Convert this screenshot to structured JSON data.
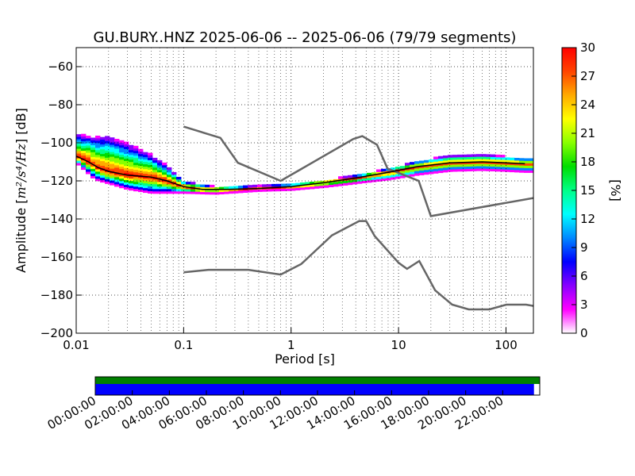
{
  "chart_data": {
    "type": "heatmap",
    "title": "GU.BURY..HNZ   2025-06-06 -- 2025-06-06  (79/79 segments)",
    "xlabel": "Period [s]",
    "ylabel_text": "Amplitude [",
    "ylabel_math": "m²/s⁴/Hz",
    "ylabel_suffix": "] [dB]",
    "x_scale": "log",
    "xlim": [
      0.01,
      180
    ],
    "ylim": [
      -200,
      -50
    ],
    "x_ticks": [
      {
        "value": 0.01,
        "label": "0.01"
      },
      {
        "value": 0.1,
        "label": "0.1"
      },
      {
        "value": 1,
        "label": "1"
      },
      {
        "value": 10,
        "label": "10"
      },
      {
        "value": 100,
        "label": "100"
      }
    ],
    "y_ticks": [
      {
        "value": -60,
        "label": "−60"
      },
      {
        "value": -80,
        "label": "−80"
      },
      {
        "value": -100,
        "label": "−100"
      },
      {
        "value": -120,
        "label": "−120"
      },
      {
        "value": -140,
        "label": "−140"
      },
      {
        "value": -160,
        "label": "−160"
      },
      {
        "value": -180,
        "label": "−180"
      },
      {
        "value": -200,
        "label": "−200"
      }
    ],
    "grid": "dotted",
    "colorbar": {
      "label": "[%]",
      "range": [
        0,
        30
      ],
      "ticks": [
        "0",
        "3",
        "6",
        "9",
        "12",
        "15",
        "18",
        "21",
        "24",
        "27",
        "30"
      ],
      "colors": [
        "#ffffff",
        "#ff00ff",
        "#8800ff",
        "#0000ff",
        "#0088ff",
        "#00ffff",
        "#00ff88",
        "#00dd00",
        "#88ff00",
        "#ffff00",
        "#ffaa00",
        "#ff4400",
        "#ff0000"
      ]
    },
    "noise_models": {
      "color": "#666666",
      "high": [
        {
          "x": 0.1,
          "y": -91.5
        },
        {
          "x": 0.22,
          "y": -97.4
        },
        {
          "x": 0.32,
          "y": -110.5
        },
        {
          "x": 0.8,
          "y": -120
        },
        {
          "x": 3.8,
          "y": -98
        },
        {
          "x": 4.6,
          "y": -96.5
        },
        {
          "x": 6.3,
          "y": -101
        },
        {
          "x": 7.9,
          "y": -113.5
        },
        {
          "x": 15.4,
          "y": -120
        },
        {
          "x": 20,
          "y": -138.5
        },
        {
          "x": 180,
          "y": -129
        }
      ],
      "low": [
        {
          "x": 0.1,
          "y": -168
        },
        {
          "x": 0.17,
          "y": -166.7
        },
        {
          "x": 0.4,
          "y": -166.7
        },
        {
          "x": 0.8,
          "y": -169.2
        },
        {
          "x": 1.24,
          "y": -163.7
        },
        {
          "x": 2.4,
          "y": -148.6
        },
        {
          "x": 4.3,
          "y": -141.1
        },
        {
          "x": 5,
          "y": -141.1
        },
        {
          "x": 6,
          "y": -149
        },
        {
          "x": 10,
          "y": -163
        },
        {
          "x": 12,
          "y": -166.2
        },
        {
          "x": 15.6,
          "y": -162.1
        },
        {
          "x": 21.9,
          "y": -177.5
        },
        {
          "x": 31.6,
          "y": -185
        },
        {
          "x": 45,
          "y": -187.5
        },
        {
          "x": 70,
          "y": -187.5
        },
        {
          "x": 101,
          "y": -185
        },
        {
          "x": 154,
          "y": -185
        },
        {
          "x": 180,
          "y": -185.7
        }
      ]
    },
    "mean_curve": [
      {
        "x": 0.01,
        "y": -107
      },
      {
        "x": 0.013,
        "y": -110
      },
      {
        "x": 0.016,
        "y": -113
      },
      {
        "x": 0.02,
        "y": -115
      },
      {
        "x": 0.03,
        "y": -117
      },
      {
        "x": 0.05,
        "y": -118
      },
      {
        "x": 0.07,
        "y": -120
      },
      {
        "x": 0.1,
        "y": -123
      },
      {
        "x": 0.15,
        "y": -124.5
      },
      {
        "x": 0.25,
        "y": -124.5
      },
      {
        "x": 0.5,
        "y": -124
      },
      {
        "x": 1,
        "y": -123
      },
      {
        "x": 2,
        "y": -121
      },
      {
        "x": 4,
        "y": -118.5
      },
      {
        "x": 8,
        "y": -115.5
      },
      {
        "x": 15,
        "y": -112.5
      },
      {
        "x": 30,
        "y": -110.5
      },
      {
        "x": 60,
        "y": -110
      },
      {
        "x": 100,
        "y": -110.5
      },
      {
        "x": 150,
        "y": -111
      }
    ],
    "spread_upper": [
      {
        "x": 0.01,
        "y": -95
      },
      {
        "x": 0.015,
        "y": -97
      },
      {
        "x": 0.02,
        "y": -96
      },
      {
        "x": 0.03,
        "y": -100
      },
      {
        "x": 0.05,
        "y": -106
      },
      {
        "x": 0.07,
        "y": -112
      },
      {
        "x": 0.1,
        "y": -120
      },
      {
        "x": 0.2,
        "y": -123
      },
      {
        "x": 0.5,
        "y": -122.5
      },
      {
        "x": 1,
        "y": -121.5
      },
      {
        "x": 2,
        "y": -119.5
      },
      {
        "x": 4,
        "y": -117
      },
      {
        "x": 8,
        "y": -113.5
      },
      {
        "x": 15,
        "y": -109.5
      },
      {
        "x": 30,
        "y": -106.5
      },
      {
        "x": 60,
        "y": -106
      },
      {
        "x": 100,
        "y": -107
      },
      {
        "x": 150,
        "y": -108
      }
    ],
    "spread_lower": [
      {
        "x": 0.01,
        "y": -110
      },
      {
        "x": 0.015,
        "y": -119
      },
      {
        "x": 0.02,
        "y": -121
      },
      {
        "x": 0.03,
        "y": -124
      },
      {
        "x": 0.05,
        "y": -126
      },
      {
        "x": 0.1,
        "y": -126
      },
      {
        "x": 0.2,
        "y": -126.5
      },
      {
        "x": 0.5,
        "y": -125
      },
      {
        "x": 1,
        "y": -124.5
      },
      {
        "x": 2,
        "y": -123
      },
      {
        "x": 4,
        "y": -121
      },
      {
        "x": 8,
        "y": -119
      },
      {
        "x": 15,
        "y": -116.5
      },
      {
        "x": 30,
        "y": -114.5
      },
      {
        "x": 60,
        "y": -114
      },
      {
        "x": 100,
        "y": -114.5
      },
      {
        "x": 150,
        "y": -115
      }
    ],
    "coverage": {
      "time_labels": [
        "00:00:00",
        "02:00:00",
        "04:00:00",
        "06:00:00",
        "08:00:00",
        "10:00:00",
        "12:00:00",
        "14:00:00",
        "16:00:00",
        "18:00:00",
        "20:00:00",
        "22:00:00"
      ],
      "data_color": "#008000",
      "psd_color": "#0000ff",
      "data_fraction": 1.0,
      "psd_fraction": 0.987
    }
  }
}
